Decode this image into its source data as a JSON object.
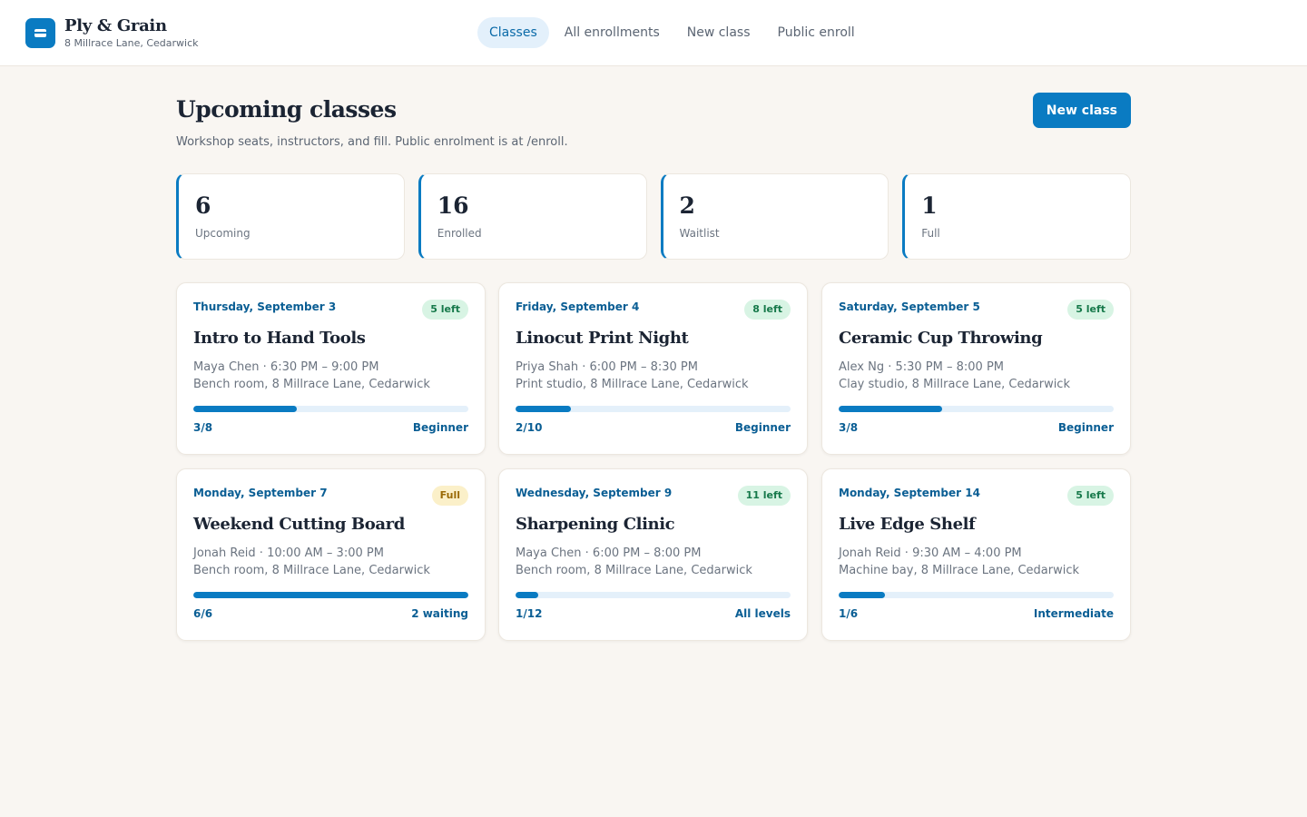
{
  "brand": {
    "name": "Ply & Grain",
    "address": "8 Millrace Lane, Cedarwick"
  },
  "nav": [
    {
      "label": "Classes",
      "active": true
    },
    {
      "label": "All enrollments",
      "active": false
    },
    {
      "label": "New class",
      "active": false
    },
    {
      "label": "Public enroll",
      "active": false
    }
  ],
  "page": {
    "title": "Upcoming classes",
    "subtitle": "Workshop seats, instructors, and fill. Public enrolment is at /enroll.",
    "new_button": "New class"
  },
  "stats": [
    {
      "value": "6",
      "label": "Upcoming"
    },
    {
      "value": "16",
      "label": "Enrolled"
    },
    {
      "value": "2",
      "label": "Waitlist"
    },
    {
      "value": "1",
      "label": "Full"
    }
  ],
  "classes": [
    {
      "date": "Thursday, September 3",
      "badge": "5 left",
      "full": false,
      "title": "Intro to Hand Tools",
      "meta": "Maya Chen · 6:30 PM – 9:00 PM",
      "location": "Bench room, 8 Millrace Lane, Cedarwick",
      "count": "3/8",
      "enrolled": 3,
      "capacity": 8,
      "level": "Beginner"
    },
    {
      "date": "Friday, September 4",
      "badge": "8 left",
      "full": false,
      "title": "Linocut Print Night",
      "meta": "Priya Shah · 6:00 PM – 8:30 PM",
      "location": "Print studio, 8 Millrace Lane, Cedarwick",
      "count": "2/10",
      "enrolled": 2,
      "capacity": 10,
      "level": "Beginner"
    },
    {
      "date": "Saturday, September 5",
      "badge": "5 left",
      "full": false,
      "title": "Ceramic Cup Throwing",
      "meta": "Alex Ng · 5:30 PM – 8:00 PM",
      "location": "Clay studio, 8 Millrace Lane, Cedarwick",
      "count": "3/8",
      "enrolled": 3,
      "capacity": 8,
      "level": "Beginner"
    },
    {
      "date": "Monday, September 7",
      "badge": "Full",
      "full": true,
      "title": "Weekend Cutting Board",
      "meta": "Jonah Reid · 10:00 AM – 3:00 PM",
      "location": "Bench room, 8 Millrace Lane, Cedarwick",
      "count": "6/6",
      "enrolled": 6,
      "capacity": 6,
      "level": "2 waiting"
    },
    {
      "date": "Wednesday, September 9",
      "badge": "11 left",
      "full": false,
      "title": "Sharpening Clinic",
      "meta": "Maya Chen · 6:00 PM – 8:00 PM",
      "location": "Bench room, 8 Millrace Lane, Cedarwick",
      "count": "1/12",
      "enrolled": 1,
      "capacity": 12,
      "level": "All levels"
    },
    {
      "date": "Monday, September 14",
      "badge": "5 left",
      "full": false,
      "title": "Live Edge Shelf",
      "meta": "Jonah Reid · 9:30 AM – 4:00 PM",
      "location": "Machine bay, 8 Millrace Lane, Cedarwick",
      "count": "1/6",
      "enrolled": 1,
      "capacity": 6,
      "level": "Intermediate"
    }
  ]
}
